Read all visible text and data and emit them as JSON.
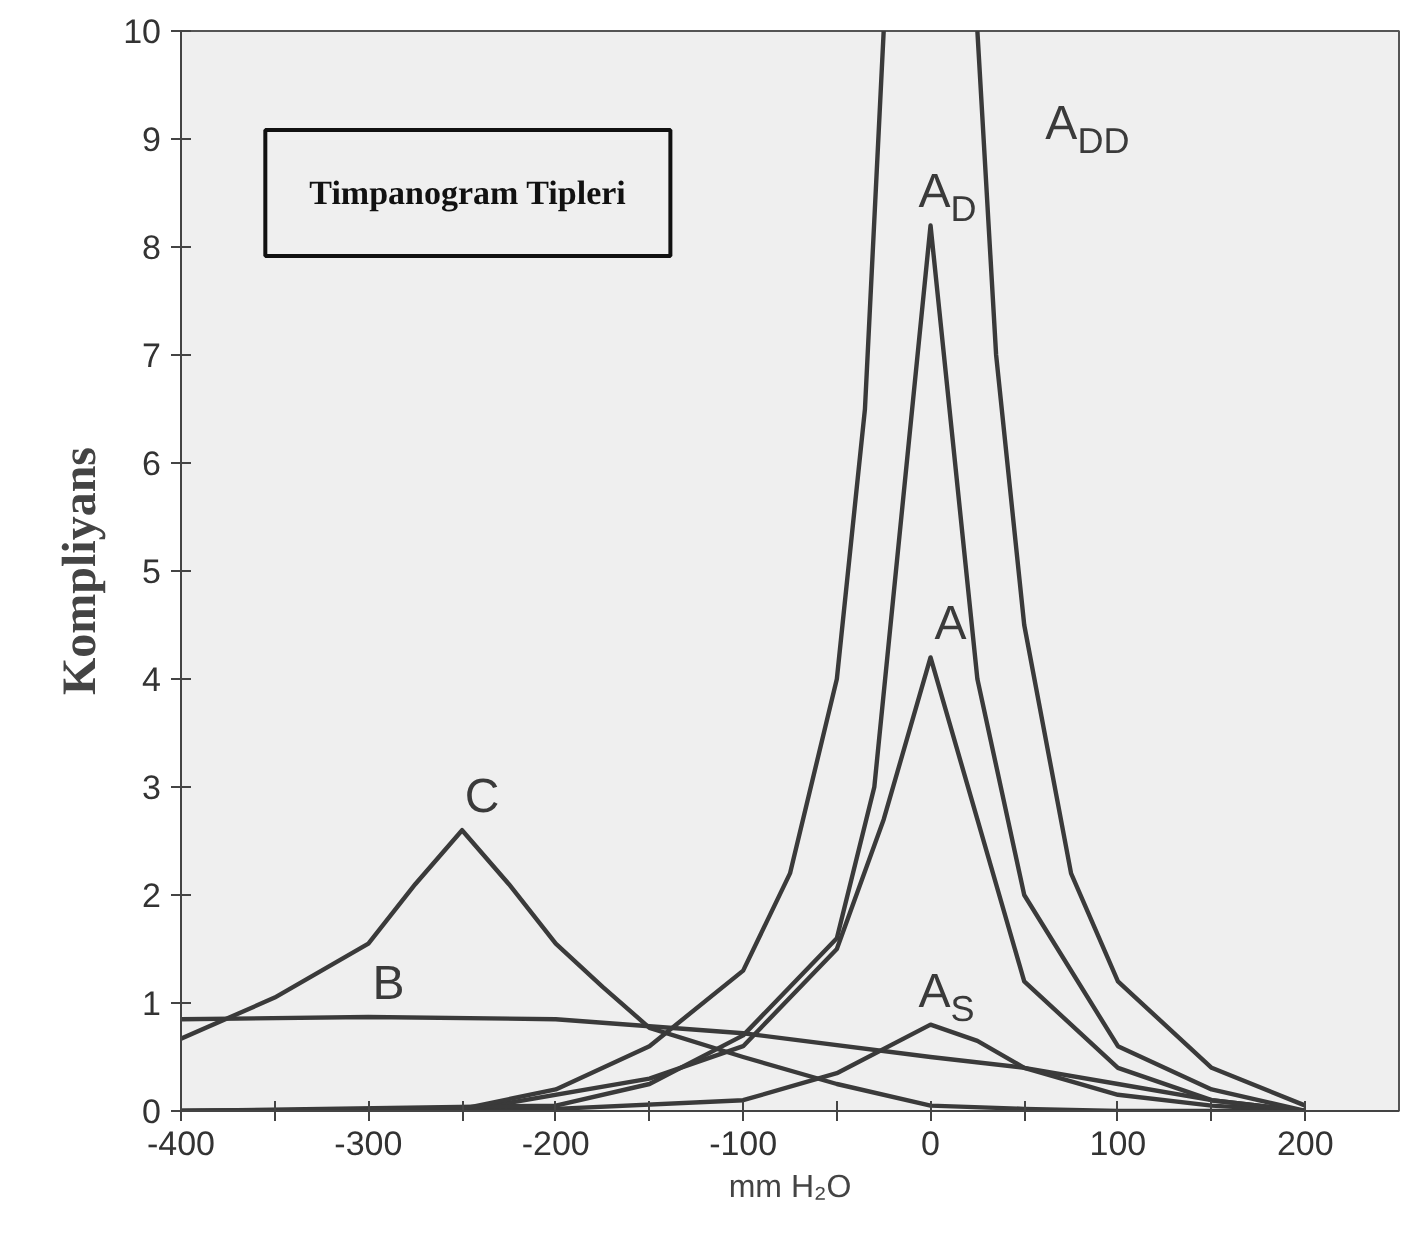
{
  "chart_data": {
    "type": "line",
    "title": "Timpanogram Tipleri",
    "xlabel": "mm H₂O",
    "ylabel": "Kompliyans",
    "xlim": [
      -400,
      250
    ],
    "ylim": [
      0,
      10
    ],
    "xticks": [
      -400,
      {
        "value": -350,
        "label": null
      },
      -300,
      {
        "value": -250,
        "label": null
      },
      -200,
      {
        "value": -150,
        "label": null
      },
      -100,
      {
        "value": -50,
        "label": null
      },
      0,
      {
        "value": 50,
        "label": null
      },
      100,
      {
        "value": 150,
        "label": null
      },
      200
    ],
    "yticks": [
      0,
      1,
      2,
      3,
      4,
      5,
      6,
      7,
      8,
      9,
      10
    ],
    "grid": false,
    "marker": "none",
    "line_style": "solid",
    "series": [
      {
        "name": "C",
        "color": "#3a3a3a",
        "x": [
          -400,
          -350,
          -300,
          -275,
          -250,
          -225,
          -200,
          -175,
          -150,
          -100,
          -50,
          0,
          50,
          100,
          200
        ],
        "values": [
          0.67,
          1.05,
          1.55,
          2.1,
          2.6,
          2.1,
          1.55,
          1.15,
          0.77,
          0.5,
          0.25,
          0.05,
          0.02,
          0,
          0
        ]
      },
      {
        "name": "B",
        "color": "#3a3a3a",
        "x": [
          -400,
          -300,
          -200,
          -100,
          0,
          50,
          100,
          150,
          200
        ],
        "values": [
          0.85,
          0.87,
          0.85,
          0.72,
          0.5,
          0.4,
          0.25,
          0.1,
          0
        ]
      },
      {
        "name": "A$_{S}$",
        "color": "#3a3a3a",
        "x": [
          -400,
          -200,
          -100,
          -50,
          0,
          25,
          50,
          100,
          150,
          200
        ],
        "values": [
          0,
          0.02,
          0.1,
          0.35,
          0.8,
          0.65,
          0.4,
          0.15,
          0.05,
          0
        ]
      },
      {
        "name": "A",
        "color": "#3a3a3a",
        "x": [
          -400,
          -250,
          -150,
          -100,
          -50,
          -25,
          0,
          25,
          50,
          100,
          150,
          200
        ],
        "values": [
          0,
          0,
          0.3,
          0.6,
          1.5,
          2.7,
          4.2,
          2.7,
          1.2,
          0.4,
          0.1,
          0
        ]
      },
      {
        "name": "A$_{D}$",
        "color": "#3a3a3a",
        "x": [
          -400,
          -200,
          -150,
          -100,
          -50,
          -30,
          0,
          25,
          50,
          100,
          150,
          200
        ],
        "values": [
          0,
          0.05,
          0.25,
          0.7,
          1.6,
          3,
          8.2,
          4,
          2,
          0.6,
          0.2,
          0
        ]
      },
      {
        "name": "A$_{DD}$",
        "color": "#3a3a3a",
        "x": [
          -400,
          -250,
          -200,
          -150,
          -100,
          -75,
          -50,
          -35,
          -25,
          0,
          25,
          35,
          50,
          75,
          100,
          150,
          200
        ],
        "values": [
          0,
          0.02,
          0.2,
          0.6,
          1.3,
          2.2,
          4,
          6.5,
          10,
          null,
          10,
          7,
          4.5,
          2.2,
          1.2,
          0.4,
          0.05
        ]
      }
    ]
  }
}
